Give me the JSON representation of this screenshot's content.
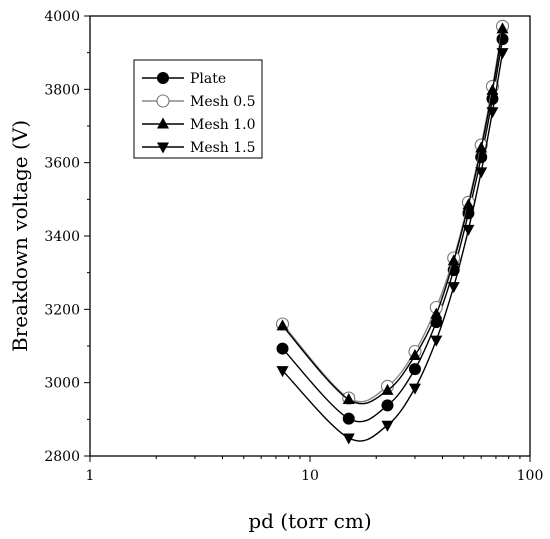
{
  "chart_data": {
    "type": "line",
    "title": "",
    "xlabel": "pd (torr cm)",
    "ylabel": "Breakdown voltage (V)",
    "xscale": "log",
    "xlim": [
      1,
      100
    ],
    "ylim": [
      2800,
      4000
    ],
    "xticks": [
      1,
      10,
      100
    ],
    "xtick_labels": [
      "1",
      "10",
      "100"
    ],
    "yticks": [
      2800,
      3000,
      3200,
      3400,
      3600,
      3800,
      4000
    ],
    "ytick_labels": [
      "2800",
      "3000",
      "3200",
      "3400",
      "3600",
      "3800",
      "4000"
    ],
    "grid": false,
    "legend_position": "top-left",
    "x": [
      7.5,
      15,
      22.5,
      30,
      37.5,
      45,
      52.5,
      60,
      67.5,
      75
    ],
    "series": [
      {
        "name": "Plate",
        "marker": "filled-circle",
        "values": [
          3093,
          2902,
          2938,
          3037,
          3165,
          3307,
          3462,
          3615,
          3774,
          3937
        ]
      },
      {
        "name": "Mesh 0.5",
        "marker": "open-circle",
        "values": [
          3160,
          2958,
          2990,
          3085,
          3205,
          3340,
          3492,
          3648,
          3808,
          3972
        ]
      },
      {
        "name": "Mesh 1.0",
        "marker": "filled-triangle-up",
        "values": [
          3155,
          2954,
          2979,
          3074,
          3187,
          3332,
          3485,
          3640,
          3797,
          3965
        ]
      },
      {
        "name": "Mesh 1.5",
        "marker": "filled-triangle-down",
        "values": [
          3033,
          2849,
          2884,
          2985,
          3116,
          3262,
          3418,
          3575,
          3739,
          3900
        ]
      }
    ]
  }
}
